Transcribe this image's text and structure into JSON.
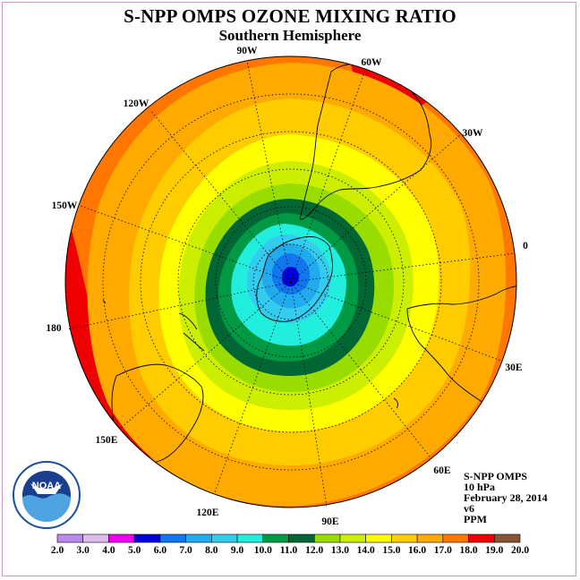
{
  "title": "S-NPP OMPS OZONE MIXING RATIO",
  "subtitle": "Southern Hemisphere",
  "info": {
    "instrument": "S-NPP OMPS",
    "level": "10 hPa",
    "date": "February 28, 2014",
    "version": "v6",
    "units": "PPM"
  },
  "logo": {
    "text": "NOAA"
  },
  "longitude_labels": [
    "90W",
    "60W",
    "30W",
    "0",
    "30E",
    "60E",
    "90E",
    "120E",
    "150E",
    "180",
    "150W",
    "120W"
  ],
  "colorbar": {
    "ticks": [
      "2.0",
      "3.0",
      "4.0",
      "5.0",
      "6.0",
      "7.0",
      "8.0",
      "9.0",
      "10.0",
      "11.0",
      "12.0",
      "13.0",
      "14.0",
      "15.0",
      "16.0",
      "17.0",
      "18.0",
      "19.0",
      "20.0"
    ],
    "colors": [
      "#bb88ee",
      "#ddbbee",
      "#ee00ee",
      "#0000dd",
      "#1177ee",
      "#22aaee",
      "#33ccee",
      "#22eedd",
      "#009944",
      "#006633",
      "#99dd00",
      "#ccee00",
      "#ffff00",
      "#ffcc00",
      "#ffaa00",
      "#ff7700",
      "#ee0000",
      "#885533"
    ]
  },
  "map_layers": [
    {
      "level": "16.0",
      "color": "#ffaa00"
    },
    {
      "level": "15.0",
      "color": "#ffcc00"
    },
    {
      "level": "14.0",
      "color": "#ffff00"
    },
    {
      "level": "13.0",
      "color": "#ccee00"
    },
    {
      "level": "12.0",
      "color": "#99dd00"
    },
    {
      "level": "11.0",
      "color": "#006633"
    },
    {
      "level": "10.0",
      "color": "#009944"
    },
    {
      "level": "9.0",
      "color": "#22eedd"
    },
    {
      "level": "8.0",
      "color": "#33ccee"
    },
    {
      "level": "7.0",
      "color": "#22aaee"
    },
    {
      "level": "6.0",
      "color": "#1177ee"
    },
    {
      "level": "5.0",
      "color": "#0000dd"
    }
  ]
}
